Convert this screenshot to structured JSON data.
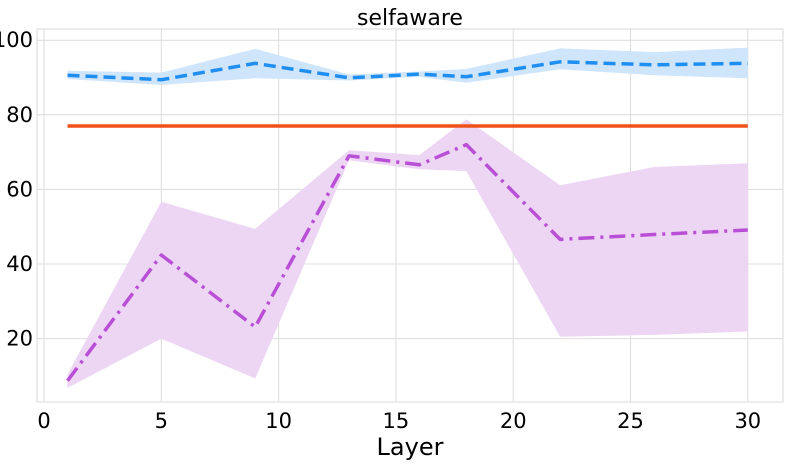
{
  "chart_data": {
    "type": "line",
    "title": "selfaware",
    "xlabel": "Layer",
    "ylabel": "",
    "xlim": [
      -0.3,
      31.5
    ],
    "ylim": [
      3,
      103
    ],
    "xticks": [
      0,
      5,
      10,
      15,
      20,
      25,
      30
    ],
    "yticks": [
      20,
      40,
      60,
      80,
      100
    ],
    "grid": true,
    "legend": "none",
    "x": [
      1,
      5,
      9,
      13,
      16,
      18,
      22,
      26,
      30
    ],
    "series": [
      {
        "name": "blue-dashed",
        "color": "#1f8ef1",
        "band_color": "#cfe5fb",
        "style": "dashed",
        "values": [
          90.6,
          89.4,
          93.8,
          89.9,
          90.9,
          90.2,
          94.2,
          93.4,
          93.8
        ],
        "lower": [
          89.6,
          88.0,
          89.8,
          89.2,
          90.2,
          88.6,
          92.2,
          90.6,
          89.8
        ],
        "upper": [
          91.8,
          91.3,
          97.7,
          90.8,
          91.6,
          92.3,
          97.8,
          96.8,
          98.0
        ]
      },
      {
        "name": "orange-solid",
        "color": "#f0511a",
        "style": "solid",
        "values": [
          77.0,
          77.0,
          77.0,
          77.0,
          77.0,
          77.0,
          77.0,
          77.0,
          77.0
        ]
      },
      {
        "name": "purple-dashdot",
        "color": "#b94fd6",
        "band_color": "#ecd6f3",
        "style": "dashdot",
        "values": [
          8.7,
          42.4,
          23.1,
          69.0,
          66.6,
          72.0,
          46.6,
          47.9,
          49.1
        ],
        "lower": [
          6.8,
          20.0,
          9.3,
          67.8,
          65.4,
          64.9,
          20.5,
          21.0,
          21.9
        ],
        "upper": [
          10.4,
          56.7,
          49.4,
          70.5,
          69.2,
          78.8,
          61.1,
          66.0,
          67.0
        ]
      }
    ]
  }
}
